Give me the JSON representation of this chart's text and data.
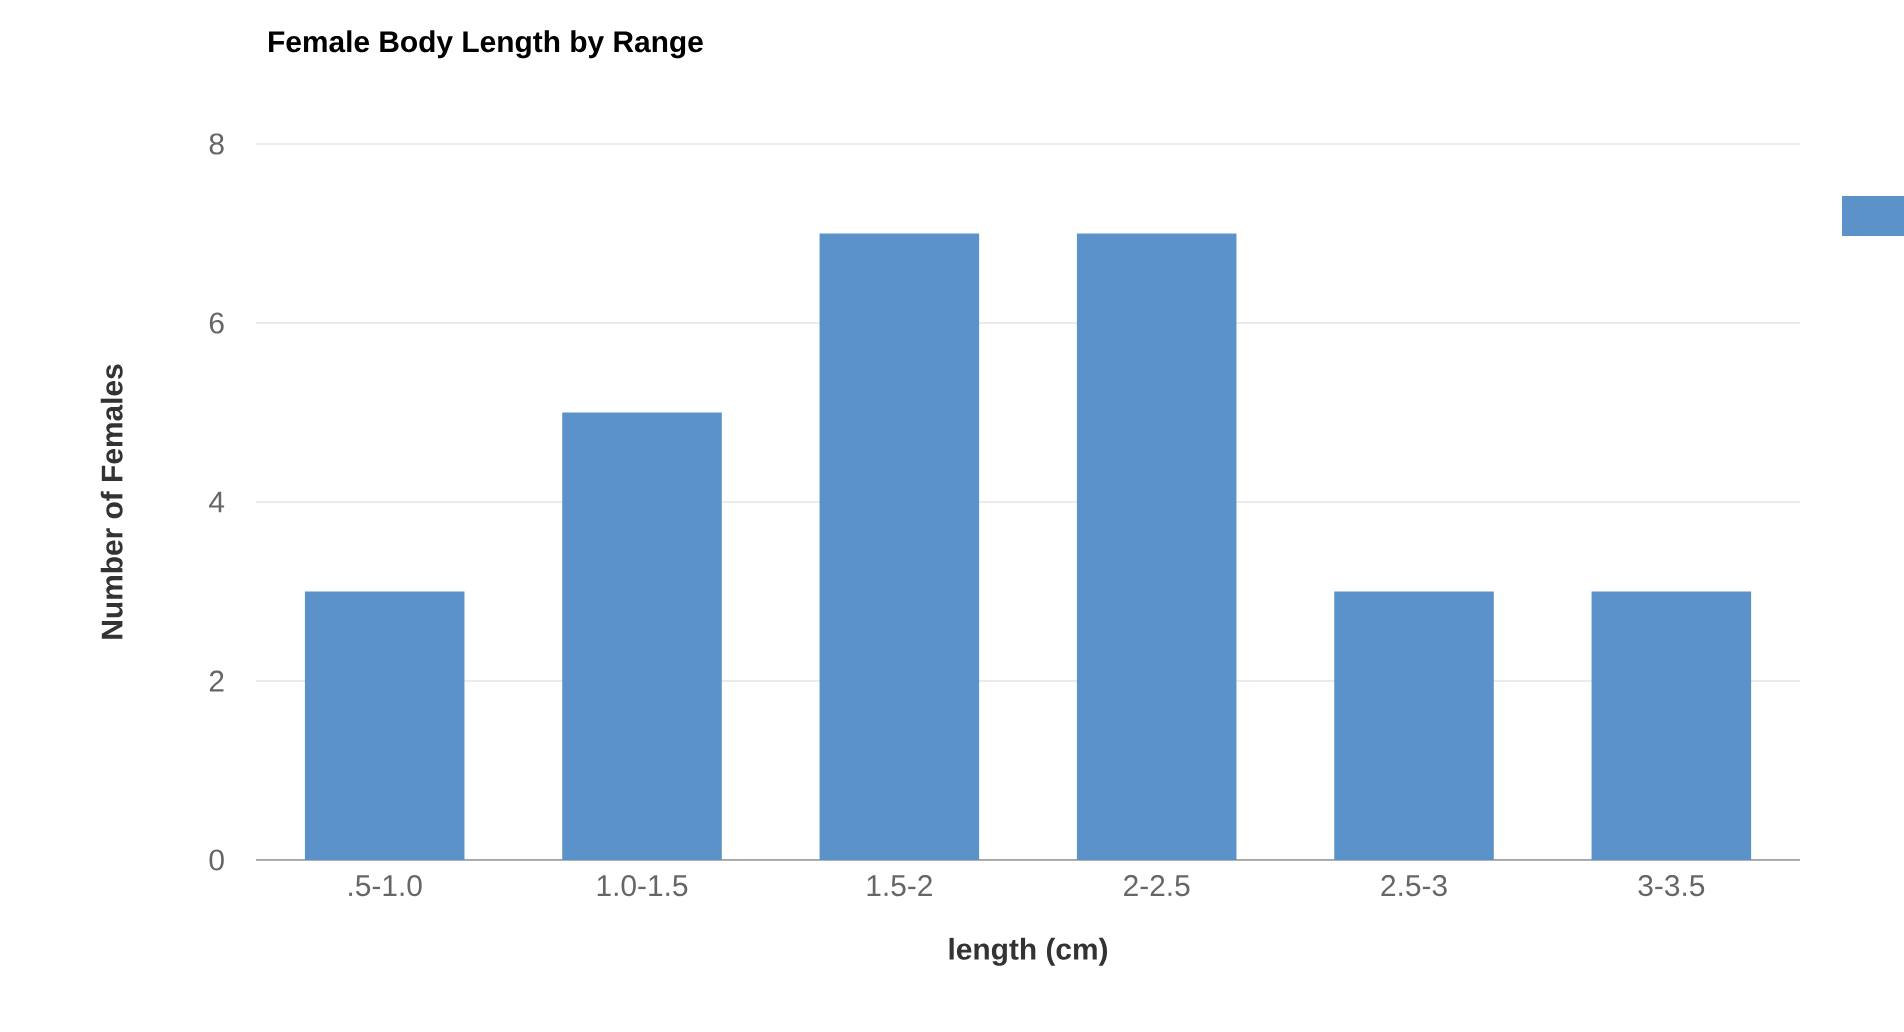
{
  "chart_data": {
    "type": "bar",
    "title": "Female Body Length by Range",
    "xlabel": "length (cm)",
    "ylabel": "Number of Females",
    "categories": [
      ".5-1.0",
      "1.0-1.5",
      "1.5-2",
      "2-2.5",
      "2.5-3",
      "3-3.5"
    ],
    "values": [
      3,
      5,
      7,
      7,
      3,
      3
    ],
    "color": "#5b92c9",
    "ylim": [
      0,
      8
    ],
    "yticks": [
      0,
      2,
      4,
      6,
      8
    ],
    "grid": "y"
  }
}
